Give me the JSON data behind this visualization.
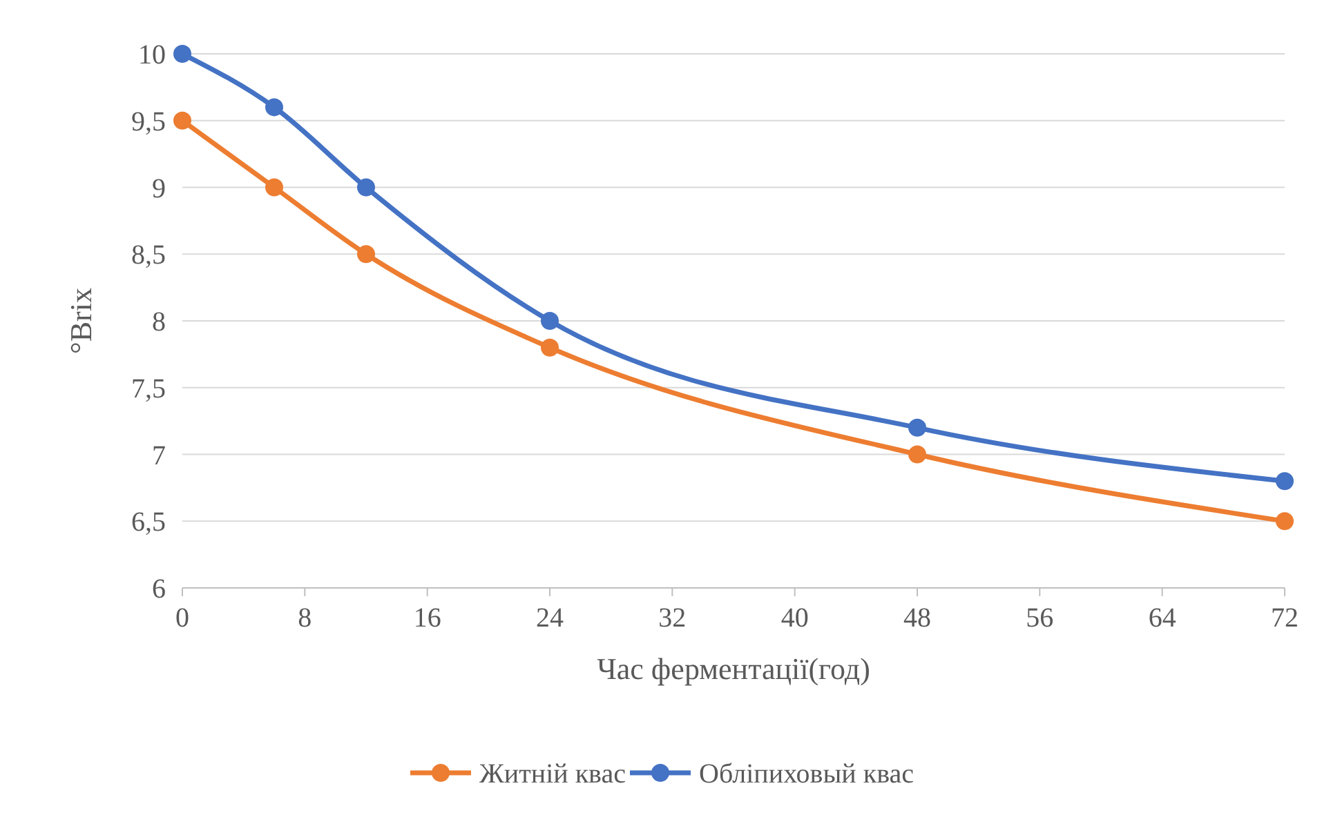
{
  "chart_data": {
    "type": "line",
    "xlabel": "Час ферментації(год)",
    "ylabel": "°Brix",
    "x": [
      0,
      6,
      12,
      24,
      48,
      72
    ],
    "series": [
      {
        "name": "Житній квас",
        "color": "#ed7d31",
        "values": [
          9.5,
          9,
          8.5,
          7.8,
          7,
          6.5
        ]
      },
      {
        "name": "Обліпиховый квас",
        "color": "#4472c4",
        "values": [
          10,
          9.6,
          9,
          8,
          7.2,
          6.8
        ]
      }
    ],
    "xlim": [
      0,
      72
    ],
    "xticks": [
      0,
      8,
      16,
      24,
      32,
      40,
      48,
      56,
      64,
      72
    ],
    "ylim": [
      6,
      10
    ],
    "yticks": [
      6,
      {
        "value": 6.5,
        "label": "6,5"
      },
      7,
      {
        "value": 7.5,
        "label": "7,5"
      },
      8,
      {
        "value": 8.5,
        "label": "8,5"
      },
      9,
      {
        "value": 9.5,
        "label": "9,5"
      },
      10
    ],
    "grid": "y",
    "legend": "bottom",
    "marker": "circle",
    "line_style": "solid"
  }
}
